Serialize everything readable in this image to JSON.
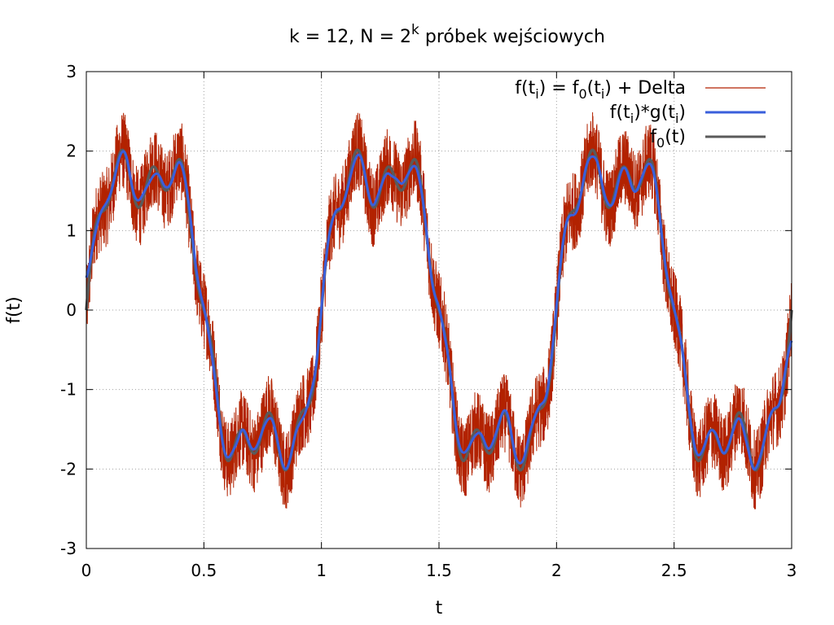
{
  "chart_data": {
    "type": "line",
    "title": "k = 12, N = 2^k próbek wejściowych",
    "title_parts": {
      "main": "k = 12, N = 2",
      "sup": "k",
      "rest": " próbek wejściowych"
    },
    "xlabel": "t",
    "ylabel": "f(t)",
    "xlim": [
      0,
      3
    ],
    "ylim": [
      -3,
      3
    ],
    "x_ticks": [
      0,
      0.5,
      1,
      1.5,
      2,
      2.5,
      3
    ],
    "x_tick_labels": [
      "0",
      "0.5",
      "1",
      "1.5",
      "2",
      "2.5",
      "3"
    ],
    "y_ticks": [
      -3,
      -2,
      -1,
      0,
      1,
      2,
      3
    ],
    "y_tick_labels": [
      "-3",
      "-2",
      "-1",
      "0",
      "1",
      "2",
      "3"
    ],
    "grid": true,
    "legend_position": "top-right",
    "samples": 4096,
    "series": [
      {
        "id": "noisy",
        "color": "#b22200",
        "legend_parts": [
          {
            "t": "f(t"
          },
          {
            "t": "i",
            "sub": true
          },
          {
            "t": ") = f"
          },
          {
            "t": "0",
            "sub": true
          },
          {
            "t": "(t"
          },
          {
            "t": "i",
            "sub": true
          },
          {
            "t": ") + Delta"
          }
        ],
        "description_values": {
          "period": 1,
          "noise_amplitude": 0.5
        }
      },
      {
        "id": "filtered",
        "color": "#3a5fdb",
        "legend_parts": [
          {
            "t": "f(t"
          },
          {
            "t": "i",
            "sub": true
          },
          {
            "t": ")*g(t"
          },
          {
            "t": "i",
            "sub": true
          },
          {
            "t": ")"
          }
        ]
      },
      {
        "id": "clean",
        "color": "#5a5a5a",
        "legend_parts": [
          {
            "t": "f"
          },
          {
            "t": "0",
            "sub": true
          },
          {
            "t": "(t)"
          }
        ]
      }
    ],
    "function_f0": {
      "terms": [
        {
          "amp": 2,
          "freq": 1
        },
        {
          "amp": 0.5,
          "freq": 3
        },
        {
          "amp": 0.25,
          "freq": 8
        }
      ]
    }
  }
}
